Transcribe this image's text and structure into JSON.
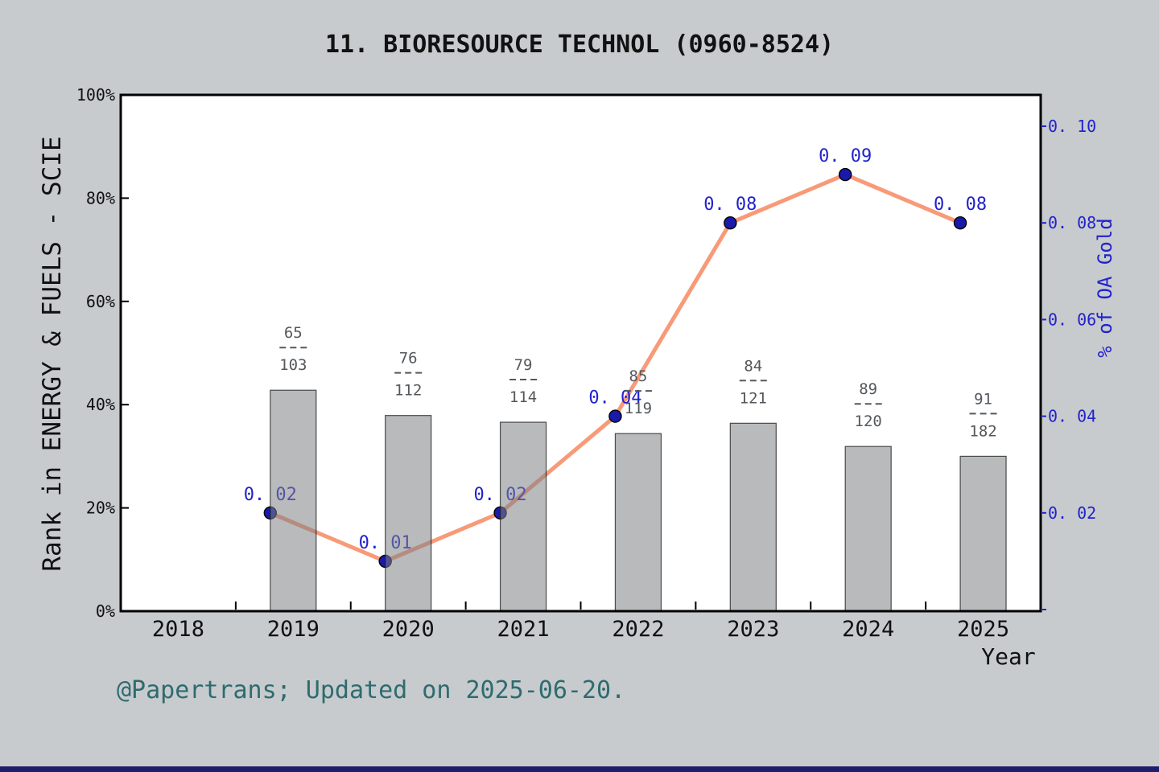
{
  "title": "11. BIORESOURCE TECHNOL (0960-8524)",
  "footer": "@Papertrans; Updated on 2025-06-20.",
  "colors": {
    "page_bg": "#c7cbce",
    "plot_bg": "#ffffff",
    "plot_border": "#000000",
    "bar_fill": "#7d8185",
    "bar_fill_opacity": 0.55,
    "bar_border": "#1a1a1a",
    "bar_apparent_gray": "#b8bbbd",
    "line": "#f89a78",
    "marker": "#1a1aaa",
    "marker_outline": "#000000",
    "right_axis_blue": "#2222cc",
    "axis_text": "#111111",
    "fraction_text": "#54585c",
    "footer_teal": "#2e6b6e",
    "bottom_strip": "#1d1d6b"
  },
  "chart_data": {
    "type": "bar+line",
    "title": "11. BIORESOURCE TECHNOL (0960-8524)",
    "categories": [
      "2018",
      "2019",
      "2020",
      "2021",
      "2022",
      "2023",
      "2024",
      "2025"
    ],
    "x_axis": {
      "label": "Year",
      "tick_labels": [
        "2018",
        "2019",
        "2020",
        "2021",
        "2022",
        "2023",
        "2024",
        "2025"
      ]
    },
    "left_axis": {
      "label": "Rank in ENERGY & FUELS - SCIE",
      "tick_labels": [
        "0%",
        "20%",
        "40%",
        "60%",
        "80%",
        "100%"
      ],
      "tick_values": [
        0,
        20,
        40,
        60,
        80,
        100
      ],
      "range": [
        0,
        100
      ],
      "unit": "%"
    },
    "right_axis": {
      "label": "% of OA Gold",
      "tick_labels": [
        "0. 02",
        "0. 04",
        "0. 06",
        "0. 08",
        "0. 10"
      ],
      "tick_values": [
        0.02,
        0.04,
        0.06,
        0.08,
        0.1
      ],
      "range": [
        0,
        0.1065
      ]
    },
    "series": [
      {
        "name": "Rank in ENERGY & FUELS - SCIE",
        "type": "bar",
        "axis": "left",
        "years": [
          "2019",
          "2020",
          "2021",
          "2022",
          "2023",
          "2024",
          "2025"
        ],
        "rank_fractions": [
          {
            "num": "65",
            "den": "103"
          },
          {
            "num": "76",
            "den": "112"
          },
          {
            "num": "79",
            "den": "114"
          },
          {
            "num": "85",
            "den": "119"
          },
          {
            "num": "84",
            "den": "121"
          },
          {
            "num": "89",
            "den": "120"
          },
          {
            "num": "91",
            "den": "182"
          }
        ],
        "bar_percent": [
          42.8,
          37.9,
          36.6,
          34.4,
          36.4,
          31.9,
          30.0
        ]
      },
      {
        "name": "% of OA Gold",
        "type": "line",
        "axis": "right",
        "years": [
          "2019",
          "2020",
          "2021",
          "2022",
          "2023",
          "2024",
          "2025"
        ],
        "values": [
          0.02,
          0.01,
          0.02,
          0.04,
          0.08,
          0.09,
          0.08
        ],
        "point_labels": [
          "0. 02",
          "0. 01",
          "0. 02",
          "0. 04",
          "0. 08",
          "0. 09",
          "0. 08"
        ]
      }
    ]
  }
}
